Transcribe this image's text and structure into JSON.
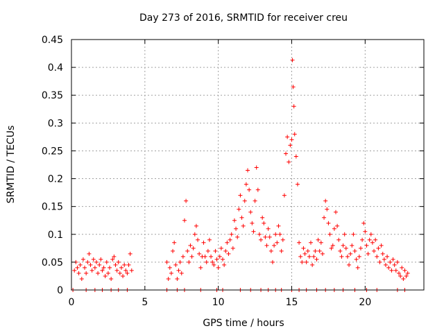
{
  "chart_data": {
    "type": "scatter",
    "title": "Day 273 of 2016, SRMTID for receiver creu",
    "xlabel": "GPS time / hours",
    "ylabel": "SRMTID / TECUs",
    "xlim": [
      0,
      24
    ],
    "ylim": [
      0,
      0.45
    ],
    "xticks": [
      0,
      5,
      10,
      15,
      20
    ],
    "xtick_labels": [
      "0",
      "5",
      "10",
      "15",
      "20"
    ],
    "yticks": [
      0,
      0.05,
      0.1,
      0.15,
      0.2,
      0.25,
      0.3,
      0.35,
      0.4,
      0.45
    ],
    "ytick_labels": [
      "0",
      "0.05",
      "0.1",
      "0.15",
      "0.2",
      "0.25",
      "0.3",
      "0.35",
      "0.4",
      "0.45"
    ],
    "grid": true,
    "marker": "+",
    "series_color": "#ff0000",
    "series": [
      {
        "name": "SRMTID",
        "points": [
          [
            0.2,
            0.035
          ],
          [
            0.3,
            0.05
          ],
          [
            0.4,
            0.04
          ],
          [
            0.5,
            0.03
          ],
          [
            0.6,
            0.045
          ],
          [
            0.7,
            0.02
          ],
          [
            0.8,
            0.055
          ],
          [
            0.9,
            0.04
          ],
          [
            1.0,
            0.03
          ],
          [
            1.1,
            0.05
          ],
          [
            1.2,
            0.065
          ],
          [
            1.3,
            0.045
          ],
          [
            1.4,
            0.035
          ],
          [
            1.5,
            0.055
          ],
          [
            1.6,
            0.04
          ],
          [
            1.7,
            0.05
          ],
          [
            1.8,
            0.03
          ],
          [
            1.9,
            0.045
          ],
          [
            2.0,
            0.055
          ],
          [
            2.1,
            0.035
          ],
          [
            2.2,
            0.04
          ],
          [
            2.3,
            0.025
          ],
          [
            2.4,
            0.05
          ],
          [
            2.5,
            0.03
          ],
          [
            2.6,
            0.04
          ],
          [
            2.7,
            0.02
          ],
          [
            2.8,
            0.055
          ],
          [
            2.9,
            0.06
          ],
          [
            3.0,
            0.045
          ],
          [
            3.1,
            0.035
          ],
          [
            3.2,
            0.05
          ],
          [
            3.3,
            0.03
          ],
          [
            3.4,
            0.04
          ],
          [
            3.5,
            0.025
          ],
          [
            3.6,
            0.045
          ],
          [
            3.7,
            0.035
          ],
          [
            3.8,
            0.03
          ],
          [
            3.9,
            0.045
          ],
          [
            4.0,
            0.065
          ],
          [
            4.1,
            0.035
          ],
          [
            6.5,
            0.05
          ],
          [
            6.6,
            0.02
          ],
          [
            6.7,
            0.04
          ],
          [
            6.8,
            0.03
          ],
          [
            6.9,
            0.07
          ],
          [
            7.0,
            0.085
          ],
          [
            7.1,
            0.045
          ],
          [
            7.2,
            0.02
          ],
          [
            7.3,
            0.035
          ],
          [
            7.4,
            0.05
          ],
          [
            7.5,
            0.03
          ],
          [
            7.6,
            0.06
          ],
          [
            7.7,
            0.125
          ],
          [
            7.8,
            0.16
          ],
          [
            7.9,
            0.07
          ],
          [
            8.0,
            0.05
          ],
          [
            8.1,
            0.08
          ],
          [
            8.2,
            0.06
          ],
          [
            8.3,
            0.075
          ],
          [
            8.4,
            0.1
          ],
          [
            8.5,
            0.115
          ],
          [
            8.6,
            0.09
          ],
          [
            8.7,
            0.065
          ],
          [
            8.8,
            0.04
          ],
          [
            8.9,
            0.06
          ],
          [
            9.0,
            0.085
          ],
          [
            9.1,
            0.06
          ],
          [
            9.2,
            0.05
          ],
          [
            9.3,
            0.07
          ],
          [
            9.4,
            0.09
          ],
          [
            9.5,
            0.06
          ],
          [
            9.6,
            0.05
          ],
          [
            9.7,
            0.045
          ],
          [
            9.8,
            0.07
          ],
          [
            9.9,
            0.055
          ],
          [
            10.0,
            0.04
          ],
          [
            10.1,
            0.06
          ],
          [
            10.2,
            0.075
          ],
          [
            10.3,
            0.055
          ],
          [
            10.4,
            0.045
          ],
          [
            10.5,
            0.07
          ],
          [
            10.6,
            0.085
          ],
          [
            10.7,
            0.065
          ],
          [
            10.8,
            0.09
          ],
          [
            10.9,
            0.1
          ],
          [
            11.0,
            0.075
          ],
          [
            11.1,
            0.125
          ],
          [
            11.2,
            0.11
          ],
          [
            11.3,
            0.095
          ],
          [
            11.4,
            0.145
          ],
          [
            11.5,
            0.17
          ],
          [
            11.6,
            0.13
          ],
          [
            11.7,
            0.115
          ],
          [
            11.8,
            0.16
          ],
          [
            11.9,
            0.19
          ],
          [
            12.0,
            0.215
          ],
          [
            12.1,
            0.18
          ],
          [
            12.2,
            0.14
          ],
          [
            12.3,
            0.12
          ],
          [
            12.4,
            0.105
          ],
          [
            12.5,
            0.16
          ],
          [
            12.6,
            0.22
          ],
          [
            12.7,
            0.18
          ],
          [
            12.8,
            0.1
          ],
          [
            12.9,
            0.09
          ],
          [
            13.0,
            0.13
          ],
          [
            13.1,
            0.12
          ],
          [
            13.2,
            0.095
          ],
          [
            13.3,
            0.08
          ],
          [
            13.4,
            0.11
          ],
          [
            13.5,
            0.095
          ],
          [
            13.6,
            0.07
          ],
          [
            13.7,
            0.05
          ],
          [
            13.8,
            0.08
          ],
          [
            13.9,
            0.1
          ],
          [
            14.0,
            0.085
          ],
          [
            14.1,
            0.115
          ],
          [
            14.2,
            0.1
          ],
          [
            14.3,
            0.07
          ],
          [
            14.4,
            0.09
          ],
          [
            14.5,
            0.17
          ],
          [
            14.6,
            0.245
          ],
          [
            14.7,
            0.275
          ],
          [
            14.8,
            0.23
          ],
          [
            14.9,
            0.26
          ],
          [
            15.0,
            0.27
          ],
          [
            15.05,
            0.413
          ],
          [
            15.1,
            0.365
          ],
          [
            15.15,
            0.33
          ],
          [
            15.2,
            0.28
          ],
          [
            15.3,
            0.24
          ],
          [
            15.4,
            0.19
          ],
          [
            15.5,
            0.085
          ],
          [
            15.6,
            0.06
          ],
          [
            15.7,
            0.05
          ],
          [
            15.8,
            0.075
          ],
          [
            15.9,
            0.065
          ],
          [
            16.0,
            0.05
          ],
          [
            16.1,
            0.07
          ],
          [
            16.2,
            0.06
          ],
          [
            16.3,
            0.085
          ],
          [
            16.4,
            0.045
          ],
          [
            16.5,
            0.06
          ],
          [
            16.6,
            0.07
          ],
          [
            16.7,
            0.055
          ],
          [
            16.8,
            0.09
          ],
          [
            16.9,
            0.07
          ],
          [
            17.0,
            0.085
          ],
          [
            17.1,
            0.065
          ],
          [
            17.2,
            0.13
          ],
          [
            17.3,
            0.16
          ],
          [
            17.4,
            0.145
          ],
          [
            17.5,
            0.12
          ],
          [
            17.6,
            0.1
          ],
          [
            17.7,
            0.075
          ],
          [
            17.8,
            0.08
          ],
          [
            17.9,
            0.11
          ],
          [
            18.0,
            0.14
          ],
          [
            18.1,
            0.115
          ],
          [
            18.2,
            0.09
          ],
          [
            18.3,
            0.07
          ],
          [
            18.4,
            0.06
          ],
          [
            18.5,
            0.08
          ],
          [
            18.6,
            0.1
          ],
          [
            18.7,
            0.075
          ],
          [
            18.8,
            0.06
          ],
          [
            18.9,
            0.045
          ],
          [
            19.0,
            0.065
          ],
          [
            19.1,
            0.08
          ],
          [
            19.2,
            0.1
          ],
          [
            19.3,
            0.07
          ],
          [
            19.4,
            0.055
          ],
          [
            19.5,
            0.04
          ],
          [
            19.6,
            0.06
          ],
          [
            19.7,
            0.075
          ],
          [
            19.8,
            0.09
          ],
          [
            19.9,
            0.12
          ],
          [
            20.0,
            0.105
          ],
          [
            20.1,
            0.08
          ],
          [
            20.2,
            0.065
          ],
          [
            20.3,
            0.09
          ],
          [
            20.4,
            0.1
          ],
          [
            20.5,
            0.085
          ],
          [
            20.6,
            0.07
          ],
          [
            20.7,
            0.09
          ],
          [
            20.8,
            0.06
          ],
          [
            20.9,
            0.075
          ],
          [
            21.0,
            0.05
          ],
          [
            21.1,
            0.08
          ],
          [
            21.2,
            0.065
          ],
          [
            21.3,
            0.055
          ],
          [
            21.4,
            0.045
          ],
          [
            21.5,
            0.06
          ],
          [
            21.6,
            0.04
          ],
          [
            21.7,
            0.05
          ],
          [
            21.8,
            0.035
          ],
          [
            21.9,
            0.055
          ],
          [
            22.0,
            0.045
          ],
          [
            22.1,
            0.035
          ],
          [
            22.2,
            0.05
          ],
          [
            22.3,
            0.03
          ],
          [
            22.4,
            0.025
          ],
          [
            22.5,
            0.04
          ],
          [
            22.6,
            0.02
          ],
          [
            22.7,
            0.035
          ],
          [
            22.8,
            0.025
          ],
          [
            22.9,
            0.03
          ]
        ]
      }
    ],
    "zero_points": [
      0.1,
      1.0,
      1.6,
      2.1,
      2.7,
      3.2,
      3.8,
      6.5,
      7.2,
      7.7,
      8.8,
      9.9,
      10.3,
      11.5,
      12.2,
      12.9,
      13.4,
      13.9,
      14.3,
      15.0,
      15.5,
      16.0,
      16.7,
      17.3,
      17.9,
      18.5,
      19.3,
      20.1,
      20.8,
      22.2,
      22.7
    ]
  }
}
